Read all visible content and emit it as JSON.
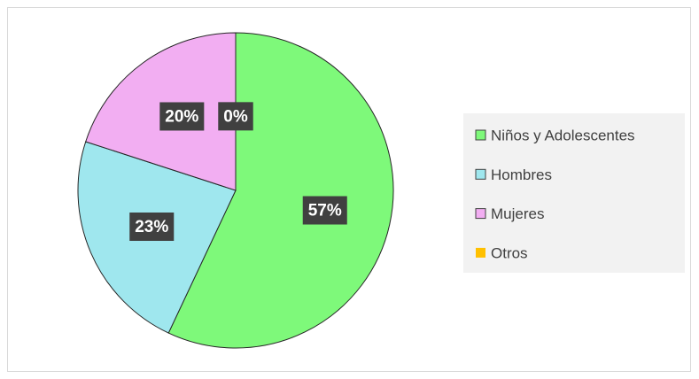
{
  "chart_data": {
    "type": "pie",
    "categories": [
      "Niños y Adolescentes",
      "Hombres",
      "Mujeres",
      "Otros"
    ],
    "values": [
      57,
      23,
      20,
      0
    ],
    "value_labels": [
      "57%",
      "23%",
      "20%",
      "0%"
    ],
    "colors": [
      "#7ef97a",
      "#9fe7ee",
      "#f2aef2",
      "#ffc000"
    ],
    "legend": "right"
  }
}
